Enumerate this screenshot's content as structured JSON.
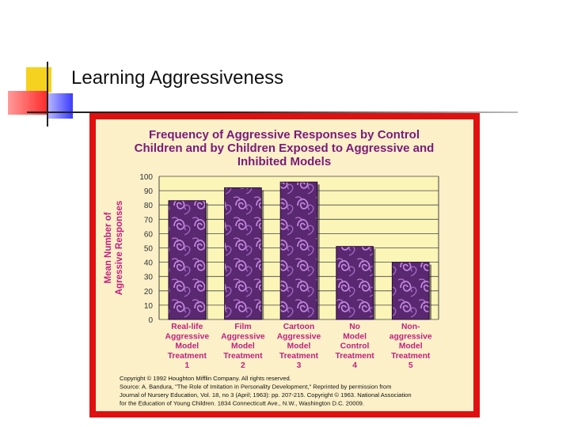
{
  "slide": {
    "title": "Learning Aggressiveness"
  },
  "chart_data": {
    "type": "bar",
    "title_lines": [
      "Frequency of Aggressive Responses by Control",
      "Children and by Children Exposed to Aggressive and",
      "Inhibited Models"
    ],
    "ylabel_lines": [
      "Mean Number of",
      "Agressive Responses"
    ],
    "yticks": [
      0,
      10,
      20,
      30,
      40,
      50,
      60,
      70,
      80,
      90,
      100
    ],
    "ylim": [
      0,
      100
    ],
    "grid": true,
    "categories": [
      [
        "Real-life",
        "Aggressive",
        "Model",
        "Treatment",
        "1"
      ],
      [
        "Film",
        "Aggressive",
        "Model",
        "Treatment",
        "2"
      ],
      [
        "Cartoon",
        "Aggressive",
        "Model",
        "Treatment",
        "3"
      ],
      [
        "No",
        "Model",
        "Control",
        "Treatment",
        "4"
      ],
      [
        "Non-",
        "aggressive",
        "Model",
        "Treatment",
        "5"
      ]
    ],
    "values": [
      83,
      92,
      96,
      51,
      40
    ],
    "footnote_lines": [
      "Copyright © 1992 Houghton Mifflin Company.  All rights reserved.",
      "Source:  A. Bandura, \"The Role of Imitation in Personality Development,\" Reprinted by permission from",
      "Journal of Nursery Education, Vol. 18, no 3 (April; 1963): pp. 207-215.  Copyright © 1963.  National Association",
      "for the Education of Young Children.  1834 Connecticutt Ave., N.W., Washington D.C. 20009."
    ],
    "colors": {
      "frame": "#e01010",
      "panel": "#fbf0c8",
      "plot_area": "#fbf5b8",
      "title": "#7a1a7a",
      "axis_label": "#c0207f",
      "tick": "#333333",
      "category": "#c0207f",
      "bar": "#6a3080",
      "bar_pattern": "#b87ad0"
    }
  }
}
